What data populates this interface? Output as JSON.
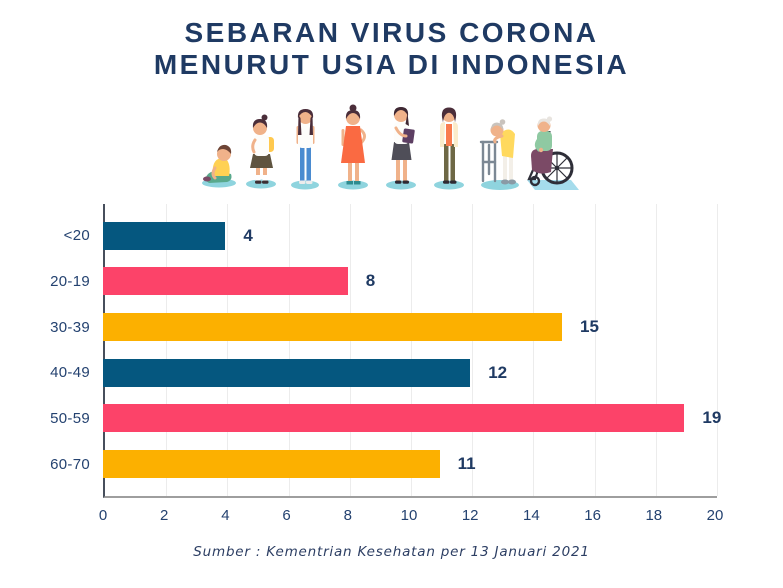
{
  "title": {
    "line1": "SEBARAN VIRUS CORONA",
    "line2": "MENURUT USIA DI INDONESIA"
  },
  "illustration": {
    "figures": [
      "toddler-sitting",
      "schoolgirl-with-backpack",
      "teenager",
      "young-woman-orange-dress",
      "adult-woman-with-folder",
      "middle-aged-woman-cardigan",
      "elderly-woman-with-walker",
      "elderly-woman-in-wheelchair"
    ]
  },
  "chart_data": {
    "type": "bar",
    "orientation": "horizontal",
    "title": "Sebaran Virus Corona Menurut Usia di Indonesia",
    "categories": [
      "<20",
      "20-19",
      "30-39",
      "40-49",
      "50-59",
      "60-70"
    ],
    "values": [
      4,
      8,
      15,
      12,
      19,
      11
    ],
    "bar_colors": [
      "#05577f",
      "#fc4369",
      "#fcb000",
      "#05577f",
      "#fc4369",
      "#fcb000"
    ],
    "xlim": [
      0,
      20
    ],
    "xticks": [
      0,
      2,
      4,
      6,
      8,
      10,
      12,
      14,
      16,
      18,
      20
    ],
    "grid": "vertical",
    "value_labels": true,
    "legend": "none"
  },
  "footer": {
    "source": "Sumber : Kementrian Kesehatan per 13 Januari 2021"
  },
  "colors": {
    "navy_text": "#1f3a63",
    "axis_label": "#244270",
    "bar_blue": "#05577f",
    "bar_pink": "#fc4369",
    "bar_yellow": "#fcb000",
    "gridline": "#ececec",
    "y_axis_line": "#474f5c",
    "x_axis_line": "#9e9e9e",
    "shadow_teal": "#8fd4de"
  }
}
